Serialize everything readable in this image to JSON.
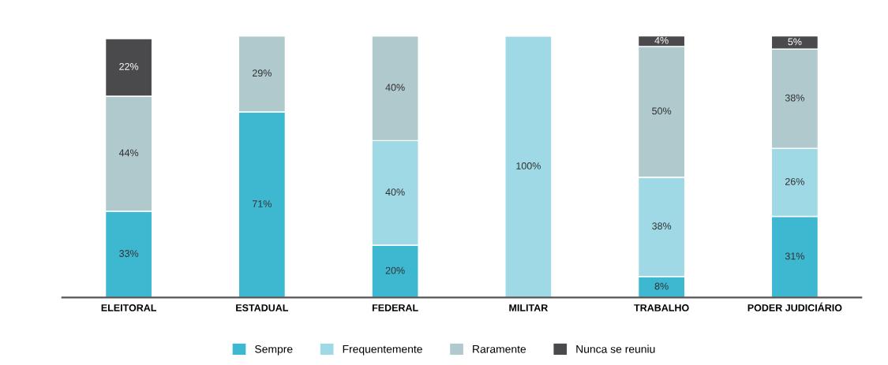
{
  "chart_data": {
    "type": "bar",
    "stacked": true,
    "legend": "bottom",
    "grid": false,
    "categories": [
      "ELEITORAL",
      "ESTADUAL",
      "FEDERAL",
      "MILITAR",
      "TRABALHO",
      "PODER JUDICIÁRIO"
    ],
    "series": [
      {
        "name": "Sempre",
        "color": "#3db8d0",
        "values": [
          33,
          71,
          20,
          null,
          8,
          31
        ],
        "value_labels": [
          "33%",
          "71%",
          "20%",
          null,
          "8%",
          "31%"
        ]
      },
      {
        "name": "Frequentemente",
        "color": "#9fd9e6",
        "values": [
          null,
          null,
          40,
          100,
          38,
          26
        ],
        "value_labels": [
          null,
          null,
          "40%",
          "100%",
          "38%",
          "26%"
        ]
      },
      {
        "name": "Raramente",
        "color": "#afc9cd",
        "values": [
          44,
          29,
          40,
          null,
          50,
          38
        ],
        "value_labels": [
          "44%",
          "29%",
          "40%",
          null,
          "50%",
          "38%"
        ]
      },
      {
        "name": "Nunca se reuniu",
        "color": "#4a4a4c",
        "values": [
          22,
          null,
          null,
          null,
          4,
          5
        ],
        "value_labels": [
          "22%",
          null,
          null,
          null,
          "4%",
          "5%"
        ]
      }
    ]
  }
}
